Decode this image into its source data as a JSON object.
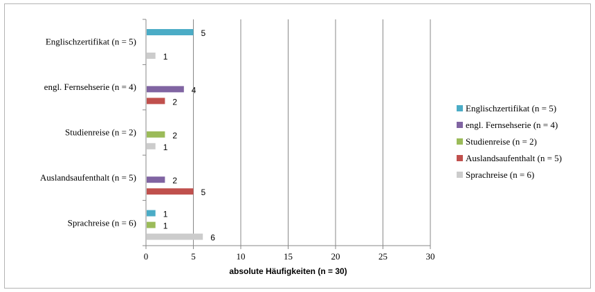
{
  "chart_data": {
    "type": "bar",
    "orientation": "horizontal",
    "title": "",
    "xlabel": "absolute Häufigkeiten (n = 30)",
    "ylabel": "",
    "xlim": [
      0,
      30
    ],
    "xticks": [
      0,
      5,
      10,
      15,
      20,
      25,
      30
    ],
    "grid": "vertical",
    "legend_position": "right",
    "categories": [
      "Englischzertifikat (n = 5)",
      "engl. Fernsehserie (n = 4)",
      "Studienreise (n = 2)",
      "Auslandsaufenthalt (n = 5)",
      "Sprachreise (n = 6)"
    ],
    "series": [
      {
        "name": "Englischzertifikat (n = 5)",
        "color": "#4bacc6",
        "values": [
          5,
          0,
          0,
          0,
          1
        ]
      },
      {
        "name": "engl. Fernsehserie (n = 4)",
        "color": "#8064a2",
        "values": [
          0,
          4,
          0,
          2,
          0
        ]
      },
      {
        "name": "Studienreise (n = 2)",
        "color": "#9bbb59",
        "values": [
          0,
          0,
          2,
          0,
          1
        ]
      },
      {
        "name": "Auslandsaufenthalt (n = 5)",
        "color": "#c0504d",
        "values": [
          0,
          2,
          0,
          5,
          0
        ]
      },
      {
        "name": "Sprachreise (n = 6)",
        "color": "#cccccc",
        "values": [
          1,
          0,
          1,
          0,
          6
        ]
      }
    ]
  }
}
